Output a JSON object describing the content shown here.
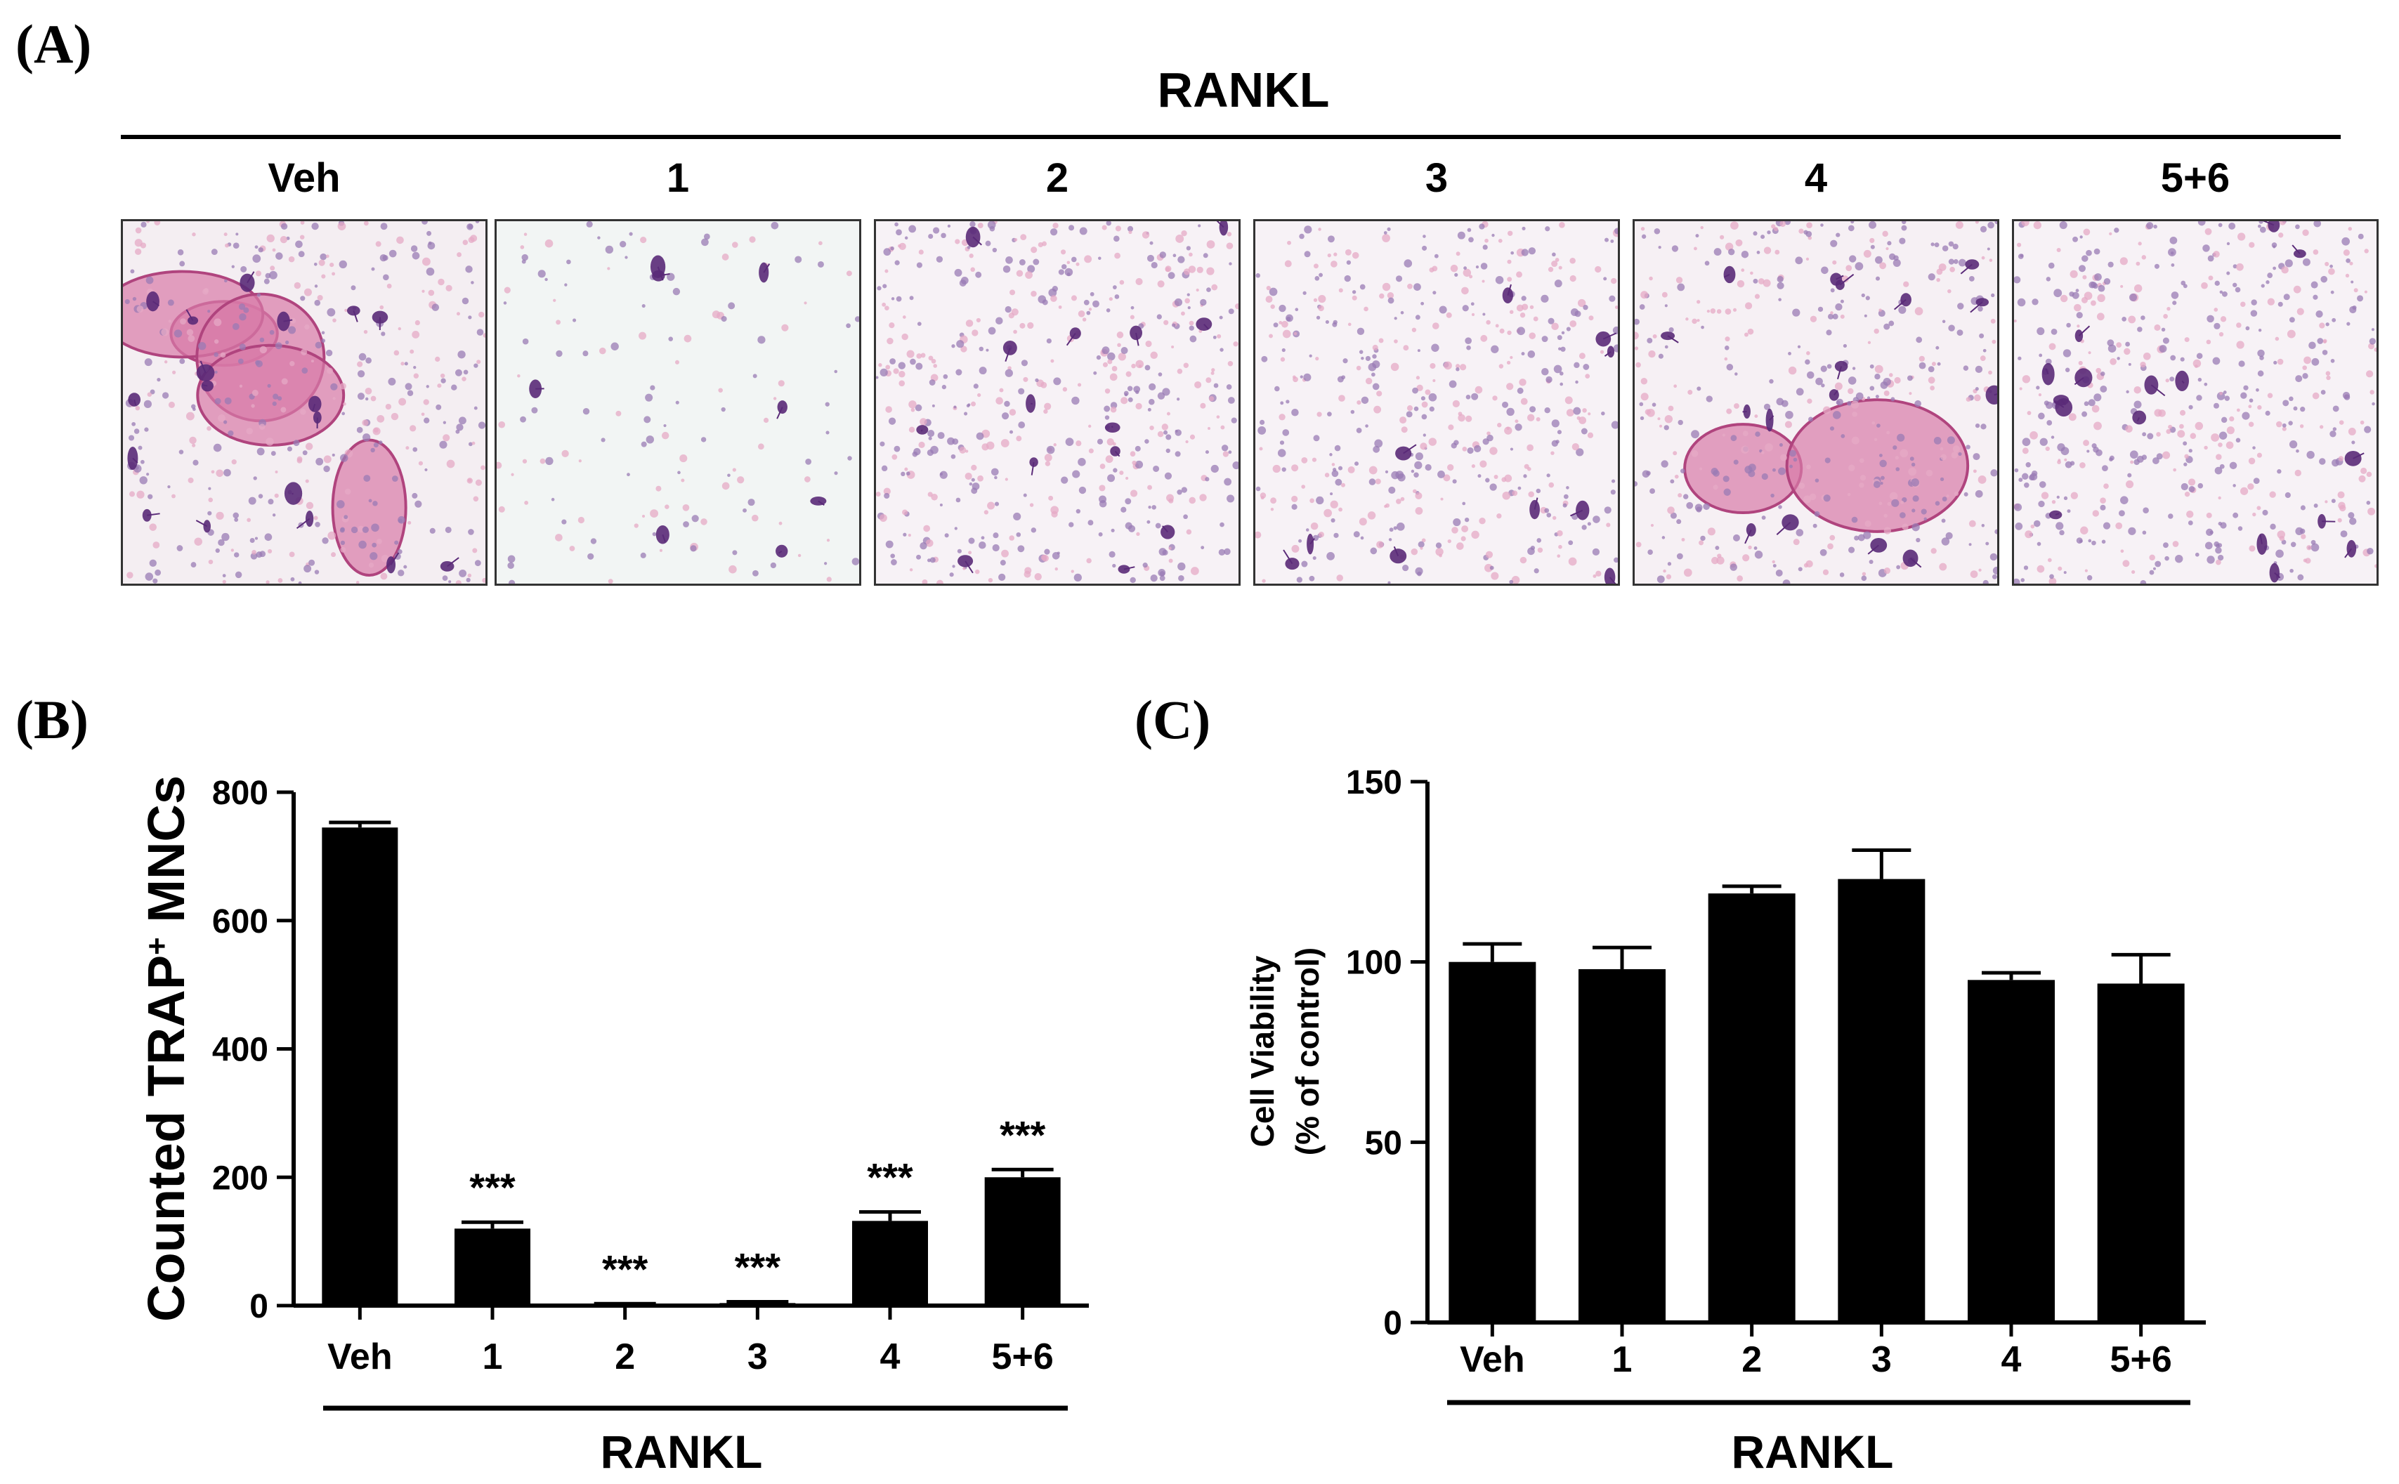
{
  "panel_a": {
    "label": "(A)",
    "treatment_label": "RANKL",
    "columns": [
      "Veh",
      "1",
      "2",
      "3",
      "4",
      "5+6"
    ]
  },
  "panel_b": {
    "label": "(B)"
  },
  "panel_c": {
    "label": "(C)"
  },
  "colors": {
    "bar": "#000000",
    "stain_pink": "#d97aa8",
    "stain_purple": "#5a2a78",
    "background": "#ffffff"
  },
  "chart_data": [
    {
      "type": "bar",
      "panel": "B",
      "categories": [
        "Veh",
        "1",
        "2",
        "3",
        "4",
        "5+6"
      ],
      "values": [
        745,
        120,
        2,
        4,
        132,
        200
      ],
      "errors": [
        8,
        10,
        1,
        2,
        14,
        12
      ],
      "annotations": [
        "",
        "***",
        "***",
        "***",
        "***",
        "***"
      ],
      "ylabel_main": "Counted  TRAP",
      "ylabel_sup": "+",
      "ylabel_tail": " MNCs",
      "xgroup_label": "RANKL",
      "ylim": [
        0,
        800
      ],
      "yticks": [
        0,
        200,
        400,
        600,
        800
      ],
      "grid": false
    },
    {
      "type": "bar",
      "panel": "C",
      "categories": [
        "Veh",
        "1",
        "2",
        "3",
        "4",
        "5+6"
      ],
      "values": [
        100,
        98,
        119,
        123,
        95,
        94
      ],
      "errors": [
        5,
        6,
        2,
        8,
        2,
        8
      ],
      "ylabel_line1": "Cell Viability",
      "ylabel_line2": "(% of control)",
      "xgroup_label": "RANKL",
      "ylim": [
        0,
        150
      ],
      "yticks": [
        0,
        50,
        100,
        150
      ],
      "grid": false
    }
  ]
}
